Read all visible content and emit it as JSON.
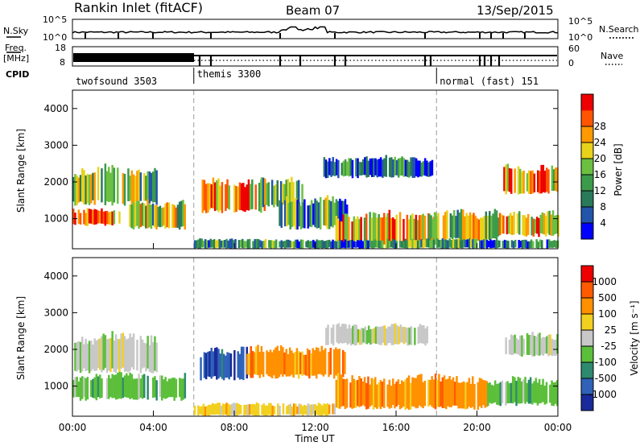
{
  "header": {
    "station": "Rankin Inlet (fitACF)",
    "beam": "Beam 07",
    "date": "13/Sep/2015"
  },
  "strip": {
    "nsky_label": "N.Sky",
    "nsky_ticks": [
      "10^5",
      "10^0"
    ],
    "nsearch_ticks": [
      "10^5",
      "10^0"
    ],
    "nsearch_label": "N.Search",
    "freq_label_1": "Freq.",
    "freq_label_2": "[MHz]",
    "freq_ticks": [
      "18",
      "8"
    ],
    "nave_ticks": [
      "60",
      "0"
    ],
    "nave_label": "Nave",
    "cpid_label": "CPID",
    "modes": [
      {
        "name": "twofsound 3503",
        "start": 0,
        "end": 6
      },
      {
        "name": "themis 3300",
        "start": 6,
        "end": 18
      },
      {
        "name": "normal (fast) 151",
        "start": 18,
        "end": 24
      }
    ]
  },
  "chart_data": [
    {
      "type": "heatmap",
      "panel": "power",
      "ylabel": "Slant Range [km]",
      "xlabel": "",
      "xlim": [
        0,
        24
      ],
      "ylim": [
        180,
        4500
      ],
      "yticks": [
        "1000",
        "2000",
        "3000",
        "4000"
      ],
      "colorbar": {
        "label": "Power [dB]",
        "ticks": [
          "4",
          "8",
          "12",
          "16",
          "20",
          "24",
          "28"
        ],
        "colors": [
          "#0000ff",
          "#2255aa",
          "#2a7a5a",
          "#3c9b4a",
          "#6cc040",
          "#e8d21a",
          "#ff9900",
          "#ff5500",
          "#ee0000"
        ]
      },
      "regions": [
        {
          "t0": 0.0,
          "t1": 2.3,
          "r0": 800,
          "r1": 1300,
          "level": 0.85
        },
        {
          "t0": 0.0,
          "t1": 4.2,
          "r0": 1350,
          "r1": 2450,
          "level": 0.45
        },
        {
          "t0": 2.8,
          "t1": 5.6,
          "r0": 700,
          "r1": 1500,
          "level": 0.55
        },
        {
          "t0": 6.3,
          "t1": 9.5,
          "r0": 1150,
          "r1": 2100,
          "level": 0.7
        },
        {
          "t0": 9.3,
          "t1": 11.4,
          "r0": 1300,
          "r1": 2100,
          "level": 0.4
        },
        {
          "t0": 10.2,
          "t1": 13.6,
          "r0": 700,
          "r1": 1600,
          "level": 0.35
        },
        {
          "t0": 12.4,
          "t1": 17.8,
          "r0": 2100,
          "r1": 2700,
          "level": 0.2
        },
        {
          "t0": 13.0,
          "t1": 18.0,
          "r0": 250,
          "r1": 1200,
          "level": 0.7
        },
        {
          "t0": 17.6,
          "t1": 21.0,
          "r0": 350,
          "r1": 1250,
          "level": 0.55
        },
        {
          "t0": 21.0,
          "t1": 24.0,
          "r0": 500,
          "r1": 1200,
          "level": 0.65
        },
        {
          "t0": 21.3,
          "t1": 24.0,
          "r0": 1650,
          "r1": 2450,
          "level": 0.7
        },
        {
          "t0": 6.0,
          "t1": 24.0,
          "r0": 180,
          "r1": 450,
          "level": 0.3
        }
      ]
    },
    {
      "type": "heatmap",
      "panel": "velocity",
      "ylabel": "Slant Range [km]",
      "xlabel": "Time UT",
      "xlim": [
        0,
        24
      ],
      "ylim": [
        180,
        4500
      ],
      "yticks": [
        "1000",
        "2000",
        "3000",
        "4000"
      ],
      "xticks": [
        "00:00",
        "04:00",
        "08:00",
        "12:00",
        "16:00",
        "20:00",
        "00:00"
      ],
      "colorbar": {
        "label": "Velocity [m s⁻¹]",
        "ticks": [
          "1000",
          "500",
          "100",
          "25",
          "-25",
          "-100",
          "-500",
          "-1000"
        ],
        "colors": [
          "#1a2a9a",
          "#2f62b8",
          "#2e8a6e",
          "#5cbf3a",
          "#c8c8c8",
          "#f2d020",
          "#ff9000",
          "#ff5a00",
          "#ee0000"
        ]
      },
      "regions": [
        {
          "t0": 0.0,
          "t1": 4.2,
          "r0": 1350,
          "r1": 2450,
          "vel": "gray"
        },
        {
          "t0": 0.0,
          "t1": 5.6,
          "r0": 600,
          "r1": 1350,
          "vel": "green"
        },
        {
          "t0": 6.3,
          "t1": 8.6,
          "r0": 1150,
          "r1": 2050,
          "vel": "blue"
        },
        {
          "t0": 8.6,
          "t1": 13.5,
          "r0": 1200,
          "r1": 2100,
          "vel": "orange"
        },
        {
          "t0": 12.5,
          "t1": 17.5,
          "r0": 2100,
          "r1": 2700,
          "vel": "gray"
        },
        {
          "t0": 13.0,
          "t1": 20.5,
          "r0": 350,
          "r1": 1300,
          "vel": "orange"
        },
        {
          "t0": 21.3,
          "t1": 24.0,
          "r0": 1800,
          "r1": 2450,
          "vel": "gray"
        },
        {
          "t0": 20.5,
          "t1": 24.0,
          "r0": 450,
          "r1": 1250,
          "vel": "green"
        },
        {
          "t0": 6.0,
          "t1": 13.0,
          "r0": 180,
          "r1": 550,
          "vel": "yellow"
        }
      ]
    }
  ]
}
